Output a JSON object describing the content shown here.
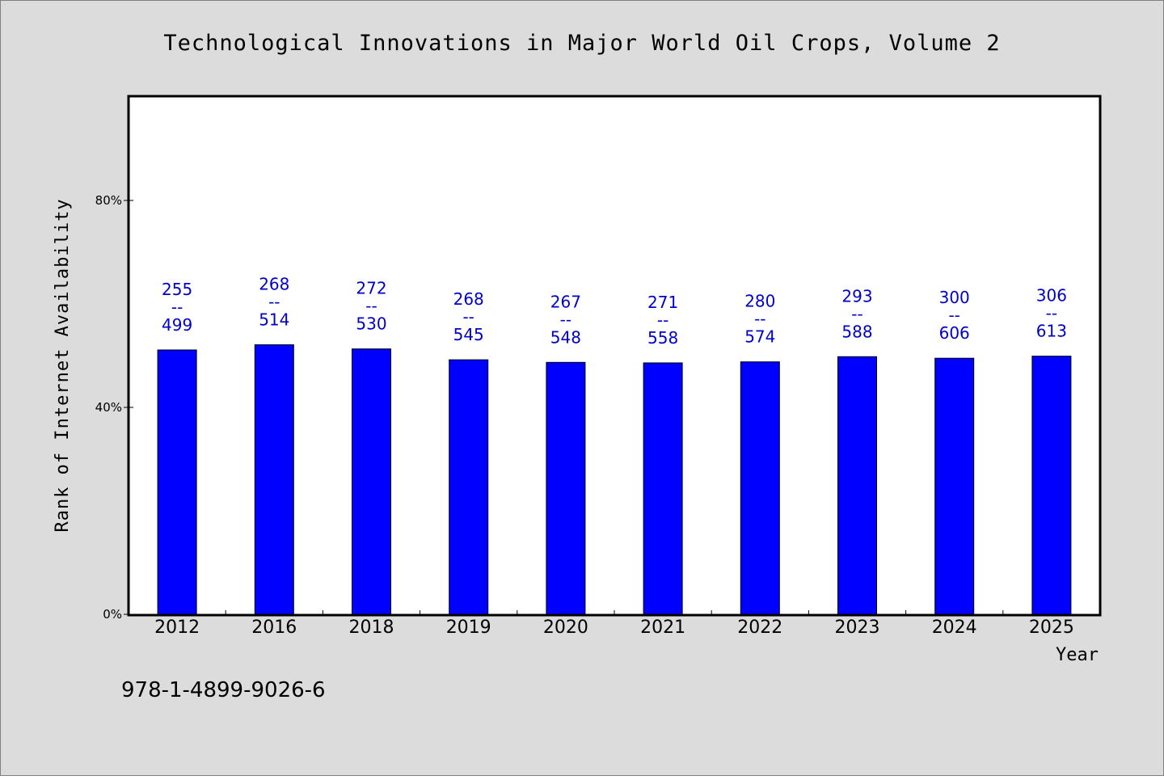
{
  "chart_data": {
    "type": "bar",
    "title": "Technological Innovations in Major World Oil Crops, Volume 2",
    "xlabel": "Year",
    "ylabel": "Rank of Internet Availability",
    "categories": [
      "2012",
      "2016",
      "2018",
      "2019",
      "2020",
      "2021",
      "2022",
      "2023",
      "2024",
      "2025"
    ],
    "values": [
      51.1,
      52.1,
      51.3,
      49.2,
      48.7,
      48.6,
      48.8,
      49.8,
      49.5,
      49.9
    ],
    "value_unit": "%",
    "data_labels": [
      {
        "top": "255",
        "sep": "--",
        "bottom": "499"
      },
      {
        "top": "268",
        "sep": "--",
        "bottom": "514"
      },
      {
        "top": "272",
        "sep": "--",
        "bottom": "530"
      },
      {
        "top": "268",
        "sep": "--",
        "bottom": "545"
      },
      {
        "top": "267",
        "sep": "--",
        "bottom": "548"
      },
      {
        "top": "271",
        "sep": "--",
        "bottom": "558"
      },
      {
        "top": "280",
        "sep": "--",
        "bottom": "574"
      },
      {
        "top": "293",
        "sep": "--",
        "bottom": "588"
      },
      {
        "top": "300",
        "sep": "--",
        "bottom": "606"
      },
      {
        "top": "306",
        "sep": "--",
        "bottom": "613"
      }
    ],
    "ylim": [
      0,
      100
    ],
    "yticks": [
      0,
      40,
      80
    ],
    "ytick_labels": [
      "0%",
      "40%",
      "80%"
    ],
    "grid": false,
    "legend": "none",
    "colors": {
      "bar": "#0000ff",
      "data_label": "#0000cc",
      "outer_background": "#dcdcdc",
      "plot_background": "#ffffff"
    }
  },
  "footer": {
    "isbn": "978-1-4899-9026-6"
  }
}
